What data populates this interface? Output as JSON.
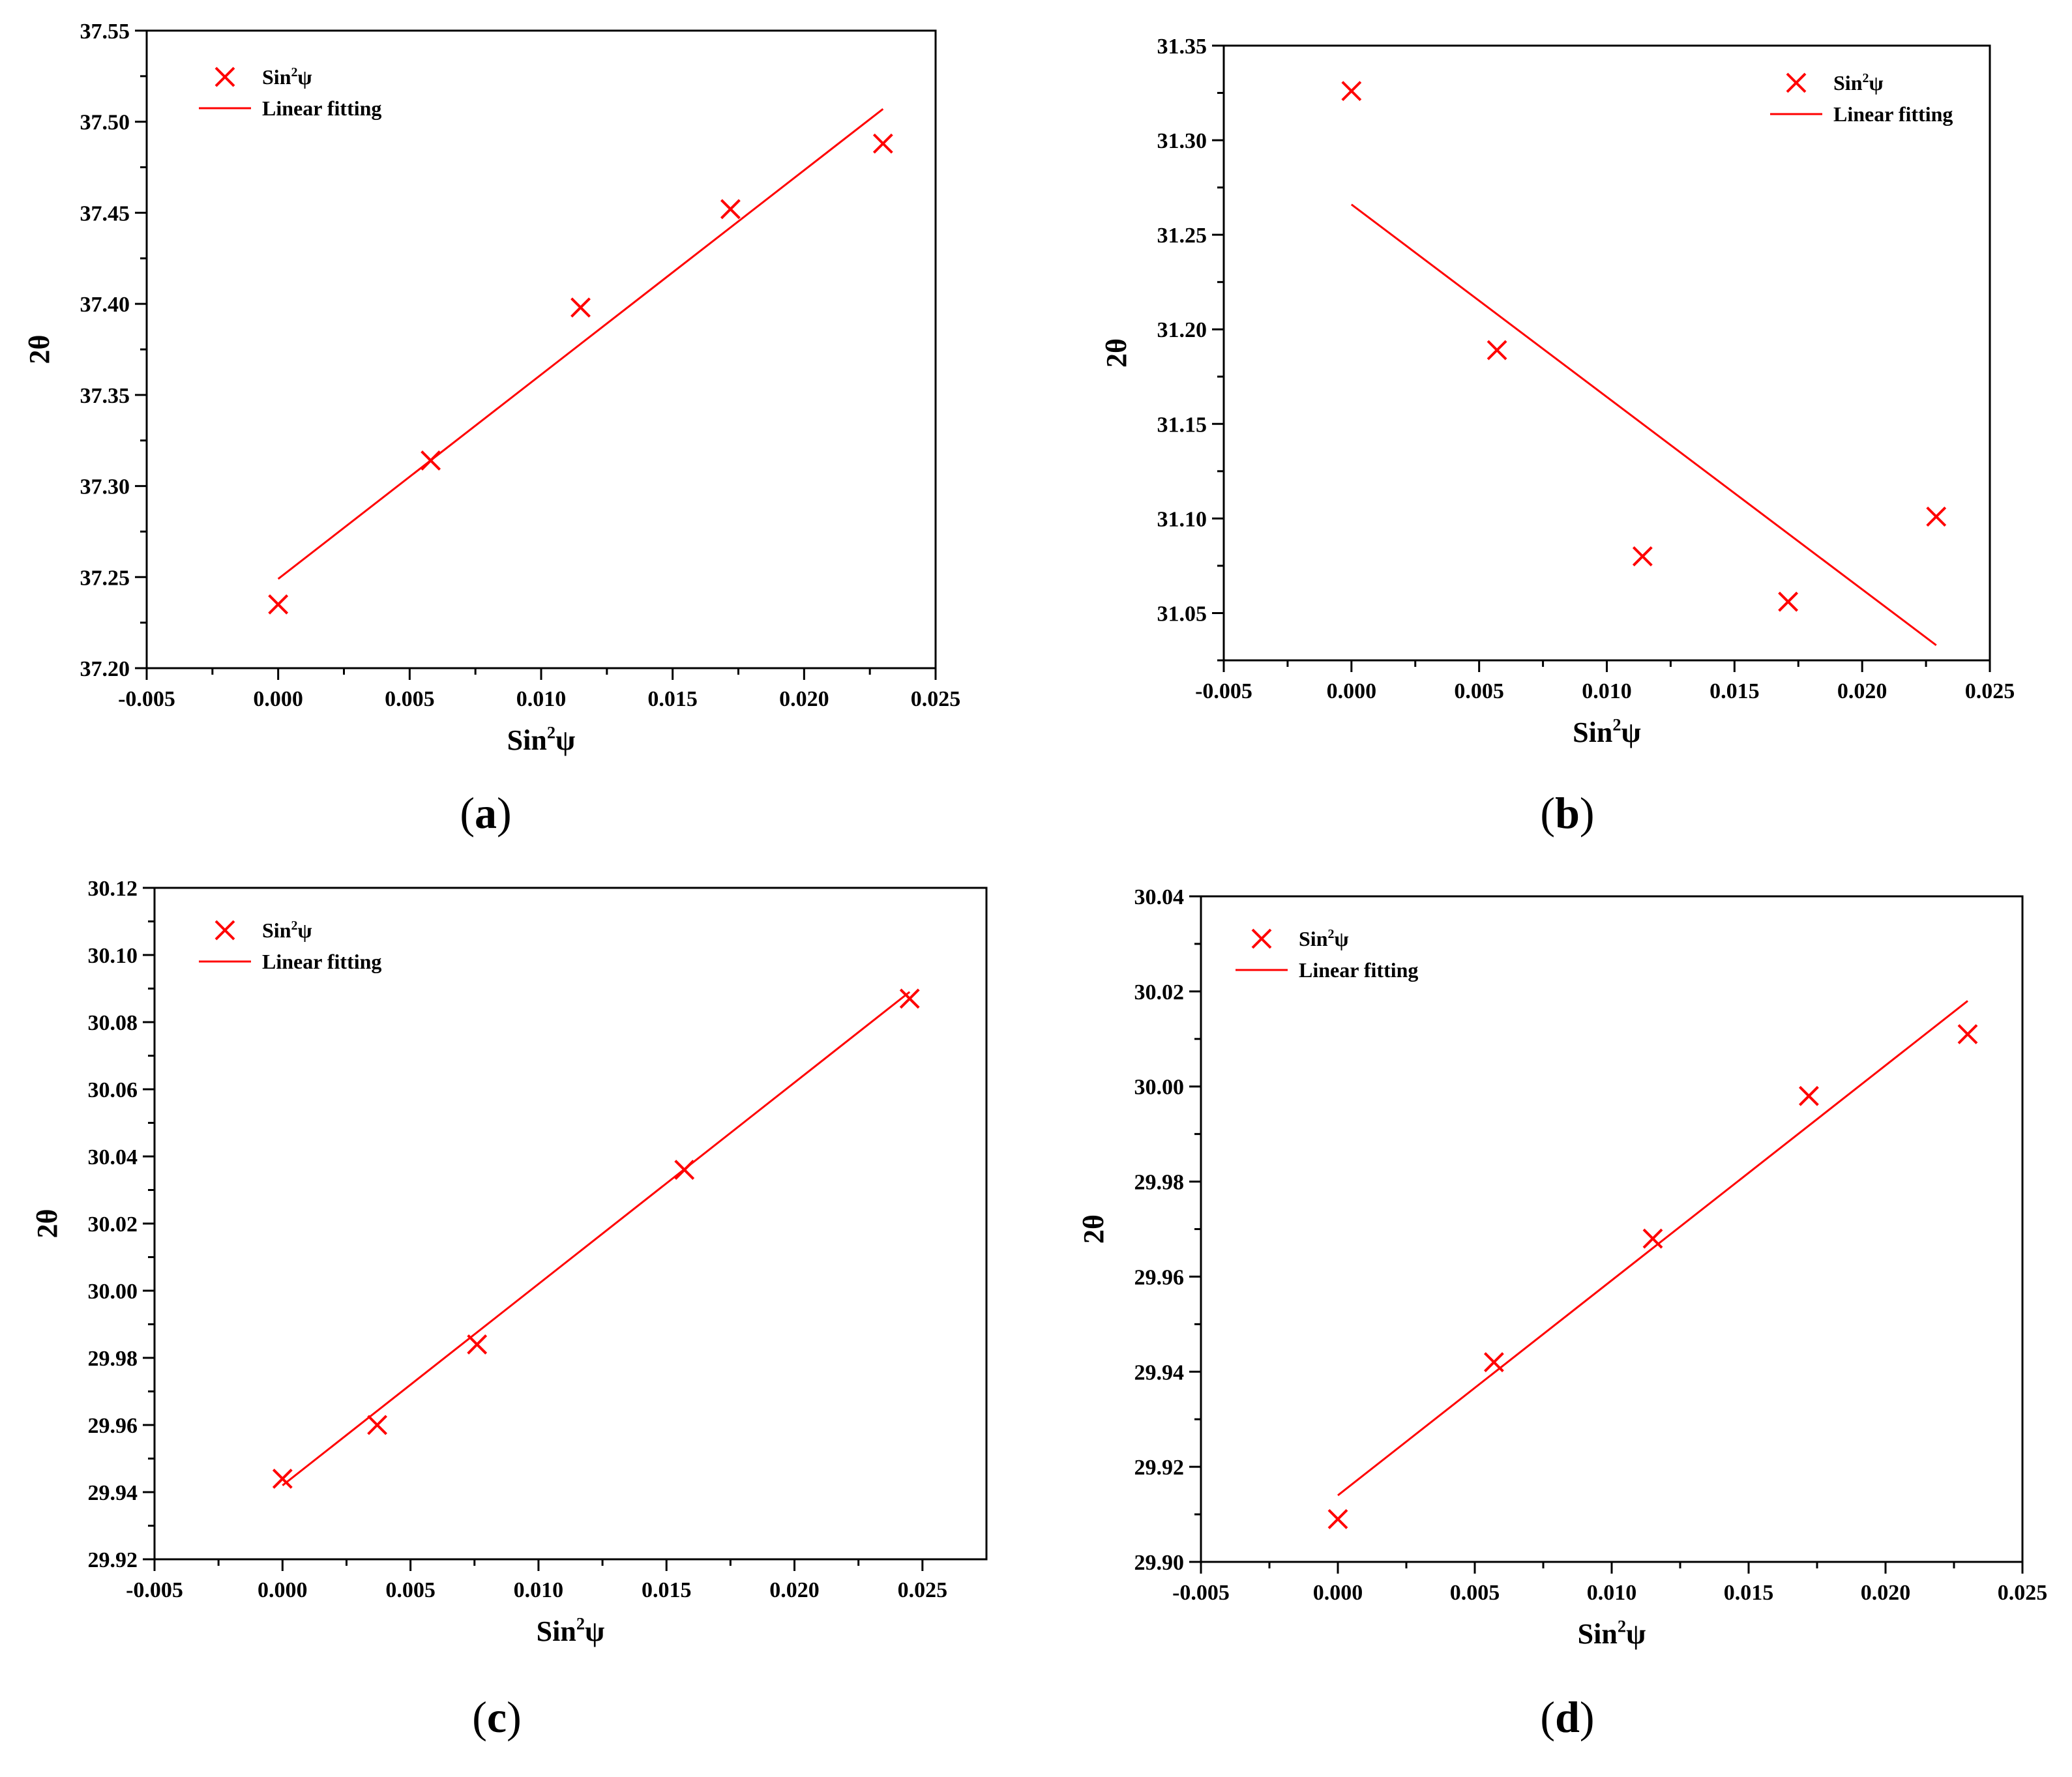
{
  "figure": {
    "marker_symbol": "×",
    "colors": {
      "series": "#ff0000",
      "axis": "#000000",
      "background": "#ffffff"
    }
  },
  "chart_data": [
    {
      "panel_label": "a",
      "caption": "(a)",
      "type": "scatter",
      "xlabel": "Sin²ψ",
      "ylabel": "2θ",
      "xlim": [
        -0.005,
        0.025
      ],
      "ylim": [
        37.2,
        37.55
      ],
      "xticks": [
        -0.005,
        0.0,
        0.005,
        0.01,
        0.015,
        0.02,
        0.025
      ],
      "xtick_labels": [
        "-0.005",
        "0.000",
        "0.005",
        "0.010",
        "0.015",
        "0.020",
        "0.025"
      ],
      "yticks": [
        37.2,
        37.25,
        37.3,
        37.35,
        37.4,
        37.45,
        37.5,
        37.55
      ],
      "ytick_labels": [
        "37.20",
        "37.25",
        "37.30",
        "37.35",
        "37.40",
        "37.45",
        "37.50",
        "37.55"
      ],
      "legend_position": "top-left",
      "series": [
        {
          "name": "Sin²ψ",
          "kind": "scatter",
          "x": [
            0.0,
            0.0058,
            0.0115,
            0.0172,
            0.023
          ],
          "y": [
            37.235,
            37.314,
            37.398,
            37.452,
            37.488
          ]
        },
        {
          "name": "Linear fitting",
          "kind": "line",
          "x": [
            0.0,
            0.023
          ],
          "y": [
            37.249,
            37.507
          ]
        }
      ]
    },
    {
      "panel_label": "b",
      "caption": "(b)",
      "type": "scatter",
      "xlabel": "Sin²ψ",
      "ylabel": "2θ",
      "xlim": [
        -0.005,
        0.025
      ],
      "ylim": [
        31.025,
        31.35
      ],
      "xticks": [
        -0.005,
        0.0,
        0.005,
        0.01,
        0.015,
        0.02,
        0.025
      ],
      "xtick_labels": [
        "-0.005",
        "0.000",
        "0.005",
        "0.010",
        "0.015",
        "0.020",
        "0.025"
      ],
      "yticks": [
        31.05,
        31.1,
        31.15,
        31.2,
        31.25,
        31.3,
        31.35
      ],
      "ytick_labels": [
        "31.05",
        "31.10",
        "31.15",
        "31.20",
        "31.25",
        "31.30",
        "31.35"
      ],
      "legend_position": "top-right",
      "series": [
        {
          "name": "Sin²ψ",
          "kind": "scatter",
          "x": [
            0.0,
            0.0057,
            0.0114,
            0.0171,
            0.0229
          ],
          "y": [
            31.326,
            31.189,
            31.08,
            31.056,
            31.101
          ]
        },
        {
          "name": "Linear fitting",
          "kind": "line",
          "x": [
            0.0,
            0.0229
          ],
          "y": [
            31.266,
            31.033
          ]
        }
      ]
    },
    {
      "panel_label": "c",
      "caption": "(c)",
      "type": "scatter",
      "xlabel": "Sin²ψ",
      "ylabel": "2θ",
      "xlim": [
        -0.005,
        0.0275
      ],
      "ylim": [
        29.92,
        30.12
      ],
      "xticks": [
        -0.005,
        0.0,
        0.005,
        0.01,
        0.015,
        0.02,
        0.025
      ],
      "xtick_labels": [
        "-0.005",
        "0.000",
        "0.005",
        "0.010",
        "0.015",
        "0.020",
        "0.025"
      ],
      "yticks": [
        29.92,
        29.94,
        29.96,
        29.98,
        30.0,
        30.02,
        30.04,
        30.06,
        30.08,
        30.1,
        30.12
      ],
      "ytick_labels": [
        "29.92",
        "29.94",
        "29.96",
        "29.98",
        "30.00",
        "30.02",
        "30.04",
        "30.06",
        "30.08",
        "30.10",
        "30.12"
      ],
      "legend_position": "top-left",
      "series": [
        {
          "name": "Sin²ψ",
          "kind": "scatter",
          "x": [
            0.0,
            0.0037,
            0.0076,
            0.0157,
            0.0245
          ],
          "y": [
            29.944,
            29.96,
            29.984,
            30.036,
            30.087
          ]
        },
        {
          "name": "Linear fitting",
          "kind": "line",
          "x": [
            0.0,
            0.0245
          ],
          "y": [
            29.942,
            30.089
          ]
        }
      ]
    },
    {
      "panel_label": "d",
      "caption": "(d)",
      "type": "scatter",
      "xlabel": "Sin²ψ",
      "ylabel": "2θ",
      "xlim": [
        -0.005,
        0.025
      ],
      "ylim": [
        29.9,
        30.04
      ],
      "xticks": [
        -0.005,
        0.0,
        0.005,
        0.01,
        0.015,
        0.02,
        0.025
      ],
      "xtick_labels": [
        "-0.005",
        "0.000",
        "0.005",
        "0.010",
        "0.015",
        "0.020",
        "0.025"
      ],
      "yticks": [
        29.9,
        29.92,
        29.94,
        29.96,
        29.98,
        30.0,
        30.02,
        30.04
      ],
      "ytick_labels": [
        "29.90",
        "29.92",
        "29.94",
        "29.96",
        "29.98",
        "30.00",
        "30.02",
        "30.04"
      ],
      "legend_position": "top-left",
      "series": [
        {
          "name": "Sin²ψ",
          "kind": "scatter",
          "x": [
            0.0,
            0.0057,
            0.0115,
            0.0172,
            0.023
          ],
          "y": [
            29.909,
            29.942,
            29.968,
            29.998,
            30.011
          ]
        },
        {
          "name": "Linear fitting",
          "kind": "line",
          "x": [
            0.0,
            0.023
          ],
          "y": [
            29.914,
            30.018
          ]
        }
      ]
    }
  ]
}
